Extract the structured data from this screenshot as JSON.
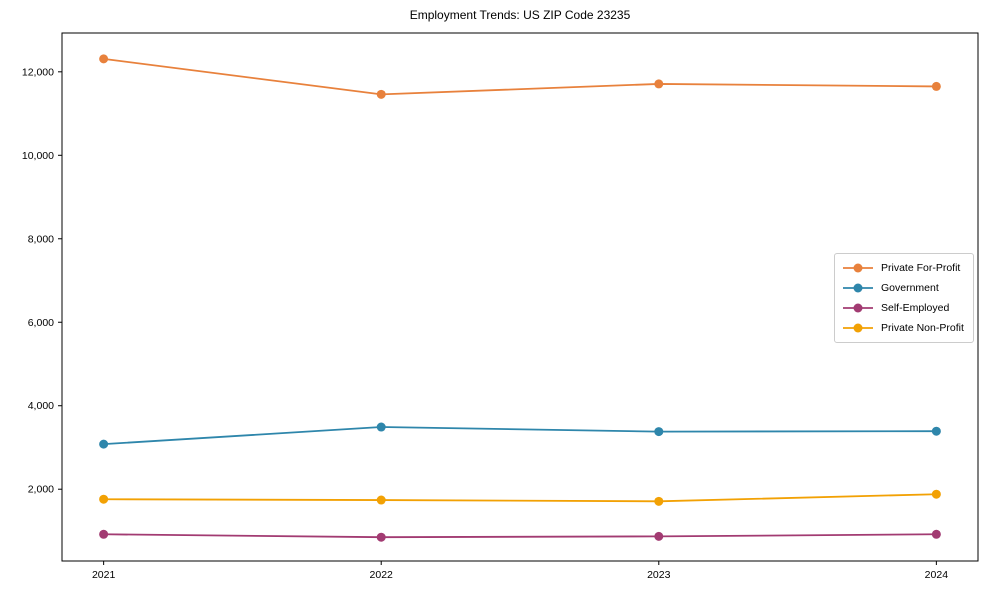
{
  "chart_data": {
    "type": "line",
    "title": "Employment Trends: US ZIP Code 23235",
    "x": [
      2021,
      2022,
      2023,
      2024
    ],
    "series": [
      {
        "name": "Private For-Profit",
        "color": "#E8813C",
        "values": [
          12310,
          11460,
          11710,
          11650
        ]
      },
      {
        "name": "Government",
        "color": "#2E86AB",
        "values": [
          3080,
          3490,
          3380,
          3390
        ]
      },
      {
        "name": "Self-Employed",
        "color": "#A23B72",
        "values": [
          920,
          850,
          870,
          920
        ]
      },
      {
        "name": "Private Non-Profit",
        "color": "#F2A104",
        "values": [
          1760,
          1740,
          1710,
          1880
        ]
      }
    ],
    "xlabel": "",
    "ylabel": "",
    "xticks": [
      2021,
      2022,
      2023,
      2024
    ],
    "yticks": [
      2000,
      4000,
      6000,
      8000,
      10000,
      12000
    ],
    "xlim": [
      2020.85,
      2024.15
    ],
    "ylim": [
      280,
      12930
    ],
    "grid": false,
    "legend_position": "center right",
    "marker": "o"
  }
}
